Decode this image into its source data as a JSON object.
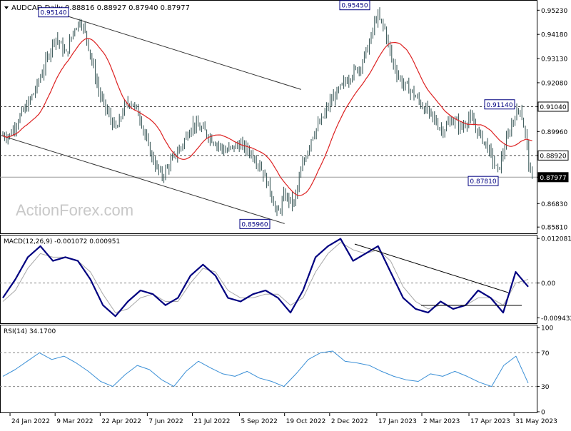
{
  "header": {
    "symbol_line": "AUDCAD,Daily  0.88816 0.88927 0.87940 0.87977"
  },
  "watermark": "ActionForex.com",
  "colors": {
    "candles": "#2f4f4f",
    "ma": "#dd2222",
    "macd_main": "#000080",
    "macd_signal": "#a8a8a8",
    "rsi": "#3a8fd6",
    "label_border": "#000080",
    "label_text": "#000080"
  },
  "chart_data": [
    {
      "type": "candlestick",
      "title": "AUDCAD,Daily",
      "yaxis_side": "right",
      "ylim": [
        0.8563,
        0.9555
      ],
      "y_ticks": [
        "0.95230",
        "0.94180",
        "0.93130",
        "0.92080",
        "0.91040",
        "0.89960",
        "0.88920",
        "0.87977",
        "0.86830",
        "0.85810"
      ],
      "overlay": "moving average (red)",
      "x_ticks": [
        "24 Jan 2022",
        "9 Mar 2022",
        "22 Apr 2022",
        "7 Jun 2022",
        "21 Jul 2022",
        "5 Sep 2022",
        "19 Oct 2022",
        "2 Dec 2022",
        "17 Jan 2023",
        "2 Mar 2023",
        "17 Apr 2023",
        "31 May 2023"
      ],
      "annotations": [
        {
          "label": "0.95140",
          "value": 0.9514
        },
        {
          "label": "0.95450",
          "value": 0.9545
        },
        {
          "label": "0.91140",
          "value": 0.9114
        },
        {
          "label": "0.91040",
          "value": 0.9104
        },
        {
          "label": "0.88920",
          "value": 0.8892
        },
        {
          "label": "0.87977",
          "value": 0.87977
        },
        {
          "label": "0.87810",
          "value": 0.8781
        },
        {
          "label": "0.85960",
          "value": 0.8596
        }
      ],
      "horizontal_levels": [
        0.9104,
        0.8892,
        0.87977
      ],
      "close_path": [
        [
          "24 Jan 2022",
          0.898
        ],
        [
          "1 Feb 2022",
          0.905
        ],
        [
          "10 Feb 2022",
          0.911
        ],
        [
          "18 Feb 2022",
          0.918
        ],
        [
          "25 Feb 2022",
          0.926
        ],
        [
          "9 Mar 2022",
          0.941
        ],
        [
          "20 Mar 2022",
          0.933
        ],
        [
          "27 Mar 2022",
          0.944
        ],
        [
          "3 Apr 2022",
          0.948
        ],
        [
          "9 Apr 2022",
          0.94
        ],
        [
          "16 Apr 2022",
          0.926
        ],
        [
          "22 Apr 2022",
          0.915
        ],
        [
          "1 May 2022",
          0.906
        ],
        [
          "8 May 2022",
          0.9
        ],
        [
          "15 May 2022",
          0.91
        ],
        [
          "22 May 2022",
          0.913
        ],
        [
          "31 May 2022",
          0.906
        ],
        [
          "7 Jun 2022",
          0.894
        ],
        [
          "14 Jun 2022",
          0.886
        ],
        [
          "21 Jun 2022",
          0.88
        ],
        [
          "1 Jul 2022",
          0.887
        ],
        [
          "10 Jul 2022",
          0.893
        ],
        [
          "21 Jul 2022",
          0.903
        ],
        [
          "1 Aug 2022",
          0.9
        ],
        [
          "10 Aug 2022",
          0.896
        ],
        [
          "22 Aug 2022",
          0.891
        ],
        [
          "5 Sep 2022",
          0.894
        ],
        [
          "15 Sep 2022",
          0.891
        ],
        [
          "25 Sep 2022",
          0.885
        ],
        [
          "5 Oct 2022",
          0.874
        ],
        [
          "12 Oct 2022",
          0.863
        ],
        [
          "19 Oct 2022",
          0.872
        ],
        [
          "28 Oct 2022",
          0.868
        ],
        [
          "5 Nov 2022",
          0.884
        ],
        [
          "15 Nov 2022",
          0.898
        ],
        [
          "25 Nov 2022",
          0.905
        ],
        [
          "2 Dec 2022",
          0.912
        ],
        [
          "12 Dec 2022",
          0.918
        ],
        [
          "22 Dec 2022",
          0.924
        ],
        [
          "1 Jan 2023",
          0.928
        ],
        [
          "10 Jan 2023",
          0.938
        ],
        [
          "17 Jan 2023",
          0.95
        ],
        [
          "25 Jan 2023",
          0.944
        ],
        [
          "1 Feb 2023",
          0.93
        ],
        [
          "10 Feb 2023",
          0.921
        ],
        [
          "20 Feb 2023",
          0.917
        ],
        [
          "2 Mar 2023",
          0.911
        ],
        [
          "12 Mar 2023",
          0.906
        ],
        [
          "22 Mar 2023",
          0.9
        ],
        [
          "1 Apr 2023",
          0.905
        ],
        [
          "10 Apr 2023",
          0.901
        ],
        [
          "17 Apr 2023",
          0.906
        ],
        [
          "25 Apr 2023",
          0.9
        ],
        [
          "5 May 2023",
          0.893
        ],
        [
          "15 May 2023",
          0.882
        ],
        [
          "22 May 2023",
          0.893
        ],
        [
          "31 May 2023",
          0.906
        ],
        [
          "6 Jun 2023",
          0.91
        ],
        [
          "12 Jun 2023",
          0.896
        ],
        [
          "16 Jun 2023",
          0.8798
        ]
      ]
    },
    {
      "type": "line",
      "title": "MACD(12,26,9) -0.001072 0.000951",
      "ylim": [
        -0.0105,
        0.0123
      ],
      "y_ticks": [
        "0.012081",
        "0.00",
        "-0.009432"
      ],
      "series": [
        {
          "name": "MACD",
          "values": [
            -0.004,
            0.001,
            0.007,
            0.01,
            0.006,
            0.007,
            0.006,
            0.001,
            -0.006,
            -0.009,
            -0.005,
            -0.002,
            -0.003,
            -0.006,
            -0.004,
            0.002,
            0.005,
            0.002,
            -0.004,
            -0.005,
            -0.003,
            -0.002,
            -0.004,
            -0.008,
            -0.002,
            0.007,
            0.01,
            0.012,
            0.006,
            0.008,
            0.01,
            0.003,
            -0.004,
            -0.007,
            -0.008,
            -0.005,
            -0.007,
            -0.006,
            -0.002,
            -0.004,
            -0.008,
            0.003,
            -0.001
          ]
        },
        {
          "name": "Signal",
          "values": [
            -0.005,
            -0.002,
            0.004,
            0.008,
            0.007,
            0.007,
            0.006,
            0.003,
            -0.003,
            -0.008,
            -0.007,
            -0.004,
            -0.003,
            -0.005,
            -0.005,
            0.0,
            0.004,
            0.003,
            -0.002,
            -0.004,
            -0.004,
            -0.003,
            -0.003,
            -0.006,
            -0.004,
            0.003,
            0.008,
            0.011,
            0.009,
            0.008,
            0.009,
            0.006,
            -0.001,
            -0.005,
            -0.007,
            -0.006,
            -0.006,
            -0.006,
            -0.004,
            -0.004,
            -0.006,
            0.0,
            0.001
          ]
        }
      ]
    },
    {
      "type": "line",
      "title": "RSI(14) 34.1700",
      "ylim": [
        0,
        100
      ],
      "y_ticks": [
        "100",
        "70",
        "30",
        "0"
      ],
      "series": [
        {
          "name": "RSI",
          "values": [
            42,
            50,
            60,
            70,
            62,
            66,
            58,
            48,
            36,
            30,
            44,
            55,
            50,
            38,
            30,
            48,
            60,
            52,
            45,
            42,
            48,
            40,
            36,
            30,
            45,
            62,
            70,
            72,
            60,
            58,
            55,
            48,
            42,
            38,
            36,
            45,
            42,
            48,
            42,
            35,
            30,
            55,
            66,
            34
          ]
        }
      ]
    }
  ]
}
